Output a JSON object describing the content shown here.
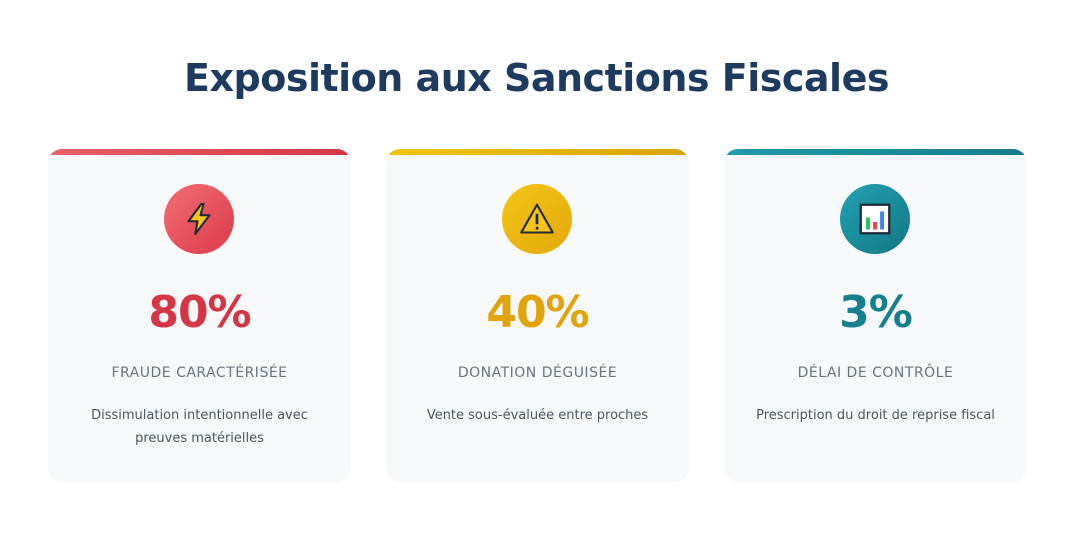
{
  "title": "Exposition aux Sanctions Fiscales",
  "cards": [
    {
      "icon": "lightning-icon",
      "value": "80%",
      "label": "FRAUDE CARACTÉRISÉE",
      "description": "Dissimulation intentionnelle avec preuves matérielles",
      "accent": "#d63545"
    },
    {
      "icon": "warning-icon",
      "value": "40%",
      "label": "DONATION DÉGUISÉE",
      "description": "Vente sous-évaluée entre proches",
      "accent": "#e0a408"
    },
    {
      "icon": "bar-chart-icon",
      "value": "3%",
      "label": "DÉLAI DE CONTRÔLE",
      "description": "Prescription du droit de reprise fiscal",
      "accent": "#167e8d"
    }
  ]
}
